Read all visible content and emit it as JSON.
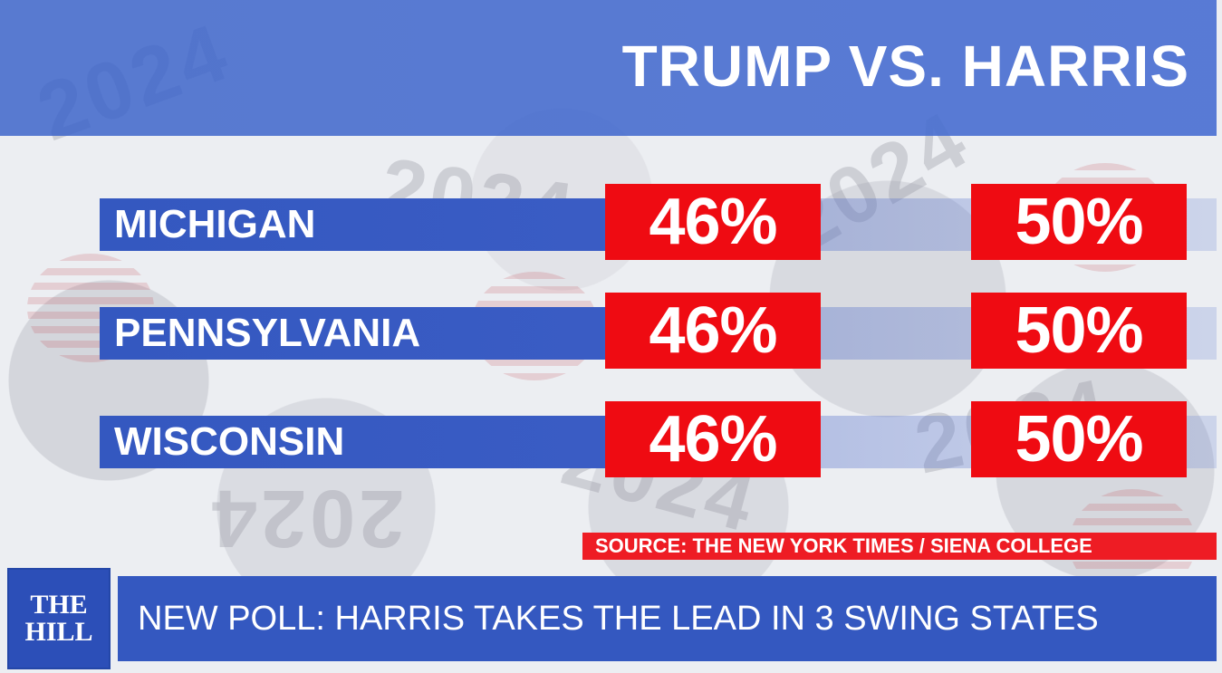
{
  "title": "TRUMP  VS. HARRIS",
  "rows": [
    {
      "state": "MICHIGAN",
      "trump": "46%",
      "harris": "50%"
    },
    {
      "state": "PENNSYLVANIA",
      "trump": "46%",
      "harris": "50%"
    },
    {
      "state": "WISCONSIN",
      "trump": "46%",
      "harris": "50%"
    }
  ],
  "source": "SOURCE: THE NEW YORK TIMES / SIENA COLLEGE",
  "headline": "NEW POLL: HARRIS TAKES THE LEAD IN 3 SWING STATES",
  "logo": {
    "line1": "THE",
    "line2": "HILL"
  },
  "colors": {
    "blue": "#3458c0",
    "red": "#ef0b12",
    "white": "#ffffff"
  }
}
